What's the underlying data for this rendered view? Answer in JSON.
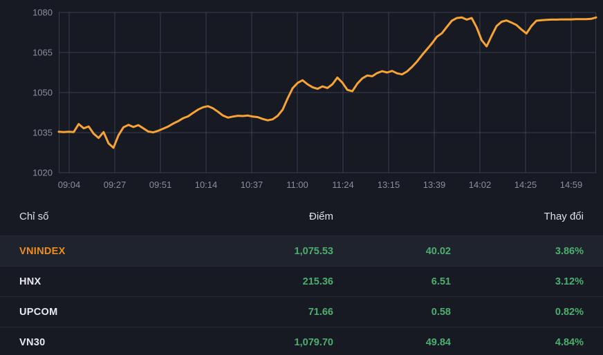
{
  "chart_data": {
    "type": "line",
    "x_ticks": [
      "09:04",
      "09:27",
      "09:51",
      "10:14",
      "10:37",
      "11:00",
      "11:24",
      "13:15",
      "13:39",
      "14:02",
      "14:25",
      "14:59"
    ],
    "y_ticks": [
      1080,
      1065,
      1050,
      1035,
      1020
    ],
    "ylim": [
      1020,
      1080
    ],
    "grid": true,
    "legend": "none",
    "series": [
      {
        "name": "VNINDEX",
        "color": "#f7a435",
        "values": [
          1035.3,
          1035.2,
          1035.3,
          1035.2,
          1038.2,
          1036.6,
          1037.3,
          1034.6,
          1033.0,
          1035.2,
          1031.0,
          1029.3,
          1034.0,
          1037.0,
          1037.9,
          1037.1,
          1037.8,
          1036.6,
          1035.4,
          1035.1,
          1035.7,
          1036.5,
          1037.3,
          1038.4,
          1039.3,
          1040.4,
          1041.1,
          1042.4,
          1043.6,
          1044.5,
          1044.9,
          1044.1,
          1042.8,
          1041.4,
          1040.6,
          1041.0,
          1041.3,
          1041.2,
          1041.4,
          1041.0,
          1040.8,
          1040.1,
          1039.6,
          1040.0,
          1041.3,
          1043.6,
          1047.8,
          1051.6,
          1053.6,
          1054.6,
          1053.1,
          1052.0,
          1051.4,
          1052.3,
          1051.7,
          1053.1,
          1055.6,
          1053.7,
          1051.0,
          1050.5,
          1053.3,
          1055.3,
          1056.4,
          1056.1,
          1057.3,
          1058.0,
          1057.5,
          1058.1,
          1057.2,
          1056.8,
          1057.9,
          1059.6,
          1061.6,
          1064.0,
          1066.2,
          1068.4,
          1070.9,
          1072.2,
          1074.6,
          1076.9,
          1077.9,
          1078.1,
          1077.3,
          1077.9,
          1074.4,
          1069.6,
          1067.3,
          1071.2,
          1074.9,
          1076.5,
          1077.0,
          1076.2,
          1075.3,
          1073.6,
          1072.1,
          1074.9,
          1076.9,
          1077.1,
          1077.2,
          1077.3,
          1077.3,
          1077.4,
          1077.4,
          1077.4,
          1077.5,
          1077.5,
          1077.5,
          1077.6,
          1078.1
        ]
      }
    ]
  },
  "table": {
    "header": {
      "name": "Chỉ số",
      "points": "Điểm",
      "change": "Thay đổi"
    },
    "rows": [
      {
        "name": "VNINDEX",
        "points": "1,075.53",
        "change": "40.02",
        "pct": "3.86%"
      },
      {
        "name": "HNX",
        "points": "215.36",
        "change": "6.51",
        "pct": "3.12%"
      },
      {
        "name": "UPCOM",
        "points": "71.66",
        "change": "0.58",
        "pct": "0.82%"
      },
      {
        "name": "VN30",
        "points": "1,079.70",
        "change": "49.84",
        "pct": "4.84%"
      }
    ]
  },
  "colors": {
    "background": "#171a23",
    "grid": "#3a3f4d",
    "line_orange": "#f7a435",
    "accent_orange": "#ee8d1c",
    "positive_green": "#4cae6e",
    "row_highlight": "#1f232d"
  }
}
